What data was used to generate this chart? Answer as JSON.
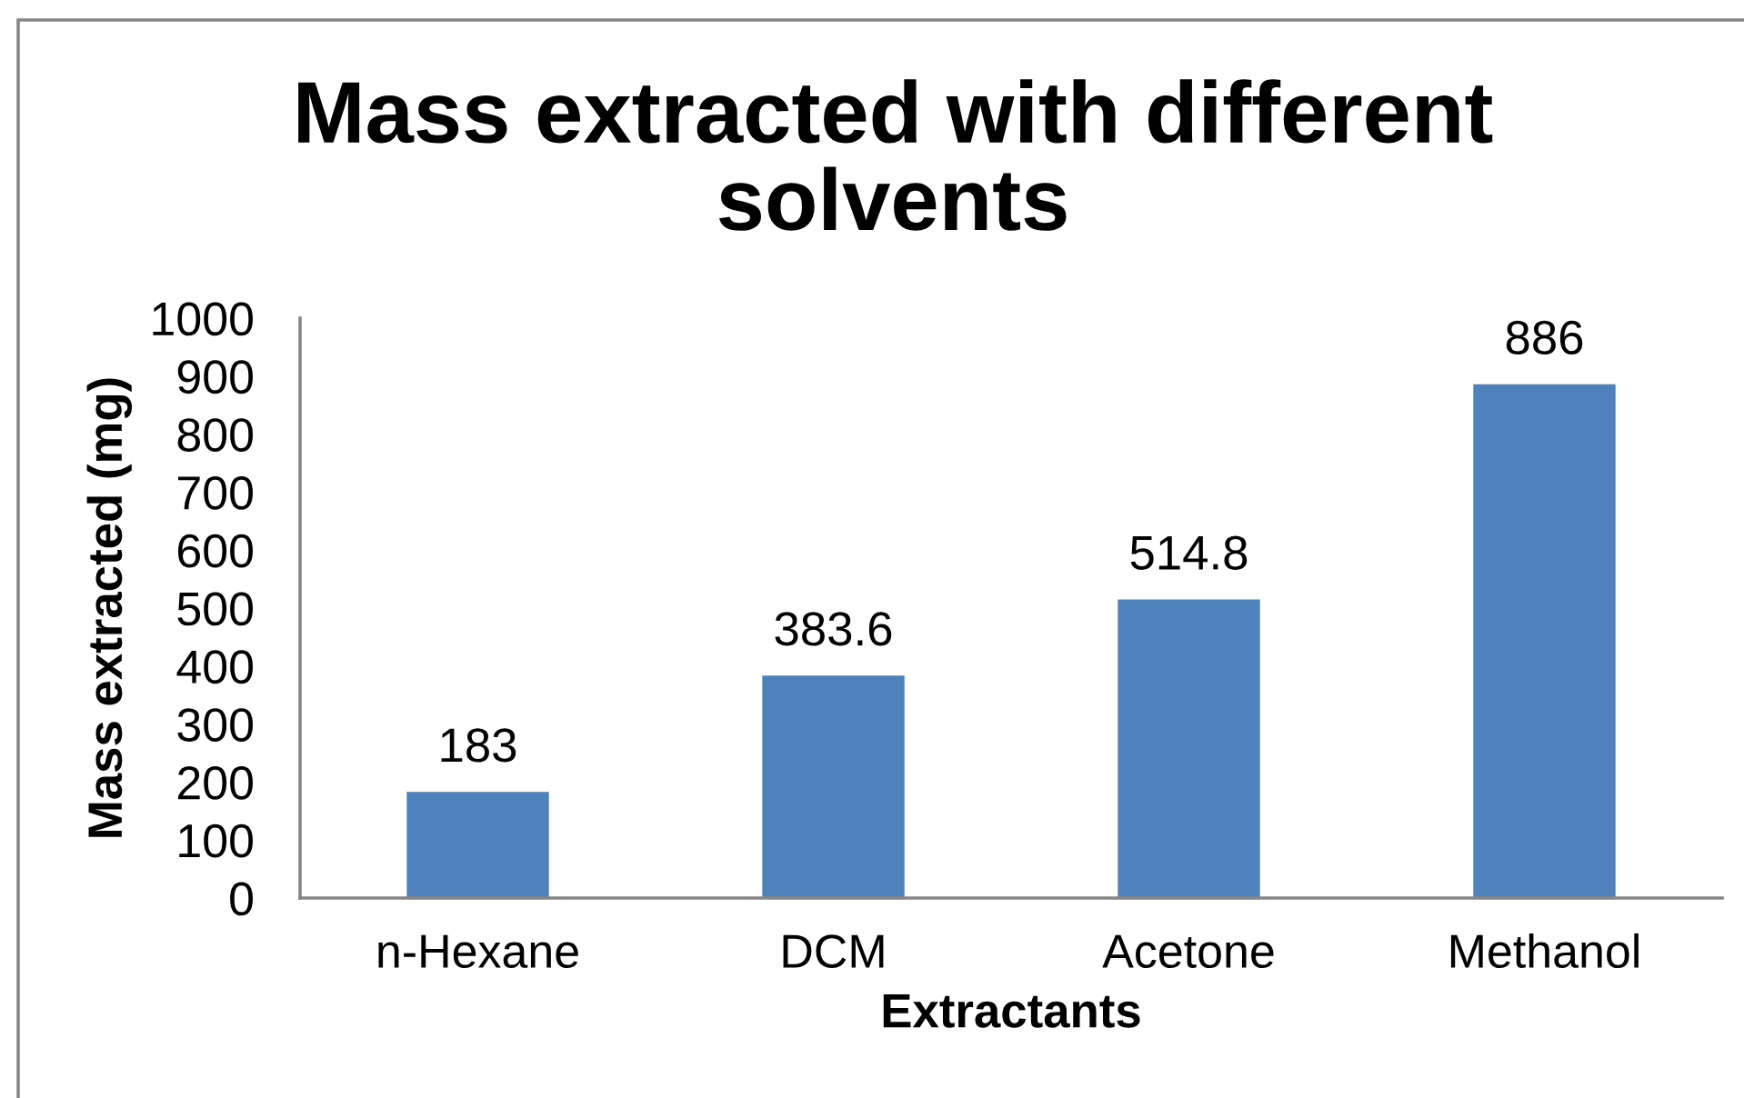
{
  "chart_data": {
    "type": "bar",
    "title": "Mass extracted with different solvents",
    "xlabel": "Extractants",
    "ylabel": "Mass extracted (mg)",
    "categories": [
      "n-Hexane",
      "DCM",
      "Acetone",
      "Methanol"
    ],
    "values": [
      183,
      383.6,
      514.8,
      886
    ],
    "color": "#4f81bd",
    "ylim": [
      0,
      1000
    ],
    "yticks": [
      0,
      100,
      200,
      300,
      400,
      500,
      600,
      700,
      800,
      900,
      1000
    ],
    "data_labels": true,
    "grid": false
  }
}
